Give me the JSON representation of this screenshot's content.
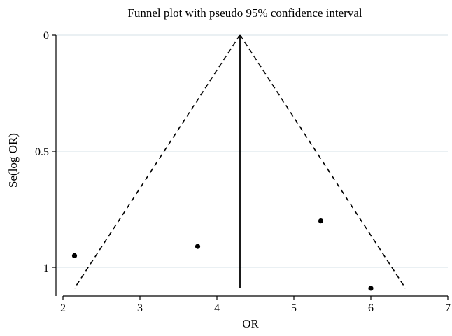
{
  "chart_data": {
    "type": "scatter",
    "title": "Funnel plot with pseudo 95% confidence interval",
    "xlabel": "OR",
    "ylabel": "Se(log OR)",
    "xlim": [
      2,
      7
    ],
    "ylim": [
      0,
      1.1
    ],
    "y_inverted": true,
    "x_ticks": [
      2,
      3,
      4,
      5,
      6,
      7
    ],
    "y_ticks": [
      0,
      0.5,
      1
    ],
    "grid": true,
    "legend": "none",
    "points": [
      {
        "x": 2.15,
        "y": 0.95
      },
      {
        "x": 3.75,
        "y": 0.91
      },
      {
        "x": 5.35,
        "y": 0.8
      },
      {
        "x": 6.0,
        "y": 1.09
      }
    ],
    "pooled_estimate": 4.3,
    "funnel_lines": [
      {
        "from": {
          "x": 4.3,
          "y": 0
        },
        "to": {
          "x": 2.15,
          "y": 1.09
        }
      },
      {
        "from": {
          "x": 4.3,
          "y": 0
        },
        "to": {
          "x": 6.45,
          "y": 1.09
        }
      }
    ],
    "vertical_line": {
      "x": 4.3,
      "y_from": 0,
      "y_to": 1.09
    },
    "colors": {
      "line": "#000000",
      "grid": "#dde8ec",
      "marker": "#000000"
    }
  }
}
